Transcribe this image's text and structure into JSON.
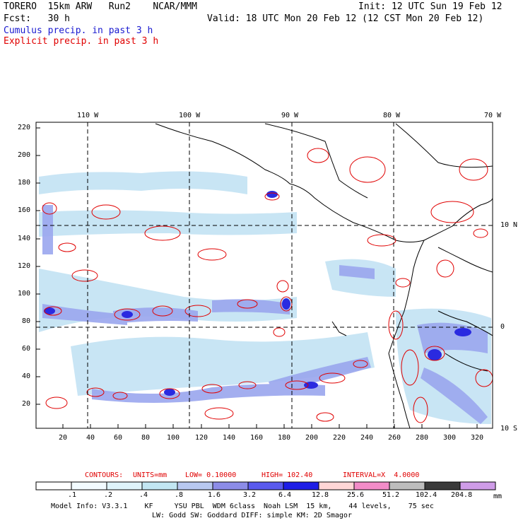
{
  "header": {
    "model_line": "TORERO  15km ARW   Run2    NCAR/MMM",
    "init_line": "Init: 12 UTC Sun 19 Feb 12",
    "fcst_line": "Fcst:   30 h",
    "valid_line": "Valid: 18 UTC Mon 20 Feb 12 (12 CST Mon 20 Feb 12)",
    "cumulus_label": "Cumulus precip. in past 3 h",
    "explicit_label": "Explicit precip. in past 3 h"
  },
  "map": {
    "lon_labels": [
      "110 W",
      "100 W",
      "90 W",
      "80 W",
      "70 W"
    ],
    "lat_labels": [
      "10 N",
      "0",
      "10 S"
    ],
    "y_ticks": [
      "220",
      "200",
      "180",
      "160",
      "140",
      "120",
      "100",
      "80",
      "60",
      "40",
      "20"
    ],
    "x_ticks": [
      "20",
      "40",
      "60",
      "80",
      "100",
      "120",
      "140",
      "160",
      "180",
      "200",
      "220",
      "240",
      "260",
      "280",
      "300",
      "320"
    ]
  },
  "contour_info": {
    "contours": "CONTOURS:",
    "units": "UNITS=mm",
    "low": "LOW= 0.10000",
    "high": "HIGH= 102.40",
    "interval": "INTERVAL=X  4.0000"
  },
  "colorbar": {
    "colors": [
      "#ffffff",
      "#f2fbff",
      "#dff4fb",
      "#c2e6f2",
      "#b8c8f0",
      "#8c8ce8",
      "#5a5aee",
      "#1e1ee6",
      "#ffd6d6",
      "#f28cc8",
      "#bdbdbd",
      "#3a3a3a",
      "#cf9ce8"
    ],
    "labels": [
      ".1",
      ".2",
      ".4",
      ".8",
      "1.6",
      "3.2",
      "6.4",
      "12.8",
      "25.6",
      "51.2",
      "102.4",
      "204.8"
    ],
    "unit": "mm"
  },
  "model_info": {
    "line1": "Model Info: V3.3.1    KF     YSU PBL  WDM 6class  Noah LSM  15 km,    44 levels,    75 sec",
    "line2": "LW: Godd SW: Goddard DIFF: simple KM: 2D Smagor"
  }
}
